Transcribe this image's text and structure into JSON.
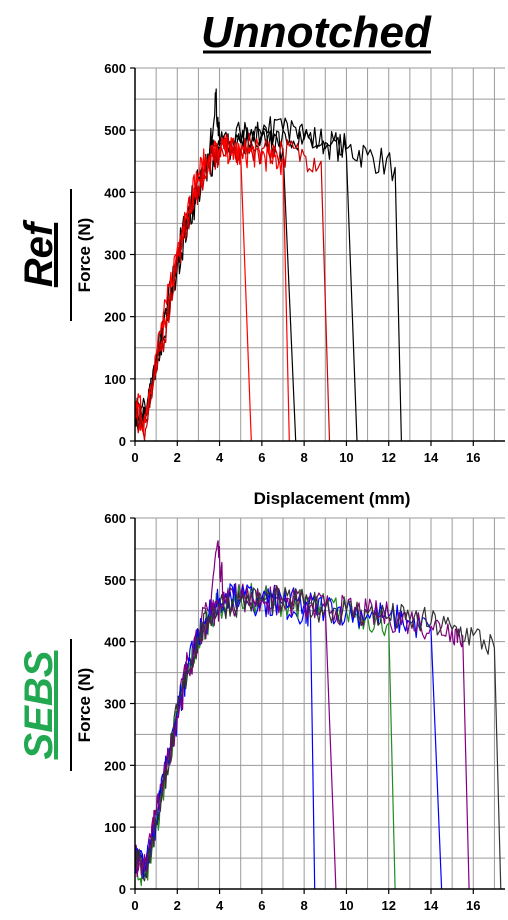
{
  "figure_title": "Unnotched",
  "chart_data": [
    {
      "type": "line",
      "panel_label": "Ref",
      "panel_label_color": "#000000",
      "ylabel": "Force (N)",
      "xlabel": "Displacement (mm)",
      "xlim": [
        0,
        17.5
      ],
      "ylim": [
        0,
        600
      ],
      "xticks": [
        "0",
        "2",
        "4",
        "6",
        "8",
        "10",
        "12",
        "14",
        "16"
      ],
      "yticks": [
        "0",
        "100",
        "200",
        "300",
        "400",
        "500",
        "600"
      ],
      "grid": true,
      "series_colors": [
        "#000000",
        "#ff0000",
        "#cc0000"
      ],
      "series": [
        {
          "color": "#000000",
          "x": [
            0,
            0.5,
            1,
            1.5,
            2,
            2.5,
            3,
            3.5,
            4,
            5,
            6,
            7,
            8,
            9,
            10,
            11,
            12.3,
            12.6
          ],
          "y": [
            50,
            40,
            130,
            210,
            300,
            370,
            420,
            460,
            475,
            480,
            490,
            500,
            490,
            480,
            470,
            460,
            440,
            0
          ]
        },
        {
          "color": "#000000",
          "x": [
            0,
            0.5,
            1,
            1.5,
            2,
            2.5,
            3,
            3.5,
            3.8,
            4,
            5,
            6,
            7,
            8,
            9,
            10,
            10.5
          ],
          "y": [
            40,
            30,
            120,
            200,
            290,
            360,
            410,
            450,
            560,
            480,
            490,
            495,
            500,
            485,
            470,
            460,
            0
          ]
        },
        {
          "color": "#000000",
          "x": [
            0,
            0.5,
            1,
            1.5,
            2,
            2.5,
            3,
            3.5,
            4,
            5,
            6,
            7,
            7.6
          ],
          "y": [
            30,
            50,
            110,
            190,
            280,
            350,
            400,
            440,
            470,
            480,
            490,
            470,
            0
          ]
        },
        {
          "color": "#ff0000",
          "x": [
            0,
            0.5,
            1,
            1.5,
            2,
            2.5,
            3,
            3.5,
            4,
            4.5,
            5,
            5.5
          ],
          "y": [
            60,
            40,
            140,
            220,
            310,
            380,
            430,
            460,
            470,
            465,
            460,
            0
          ]
        },
        {
          "color": "#ff0000",
          "x": [
            0,
            0.5,
            1,
            1.5,
            2,
            2.5,
            3,
            3.5,
            4,
            4.5,
            5,
            5.5,
            6,
            6.5,
            7,
            7.3
          ],
          "y": [
            50,
            30,
            120,
            200,
            300,
            370,
            420,
            450,
            465,
            470,
            460,
            465,
            460,
            455,
            450,
            0
          ]
        },
        {
          "color": "#cc0000",
          "x": [
            0,
            0.5,
            1,
            1.5,
            2,
            2.5,
            3,
            3.5,
            4,
            5,
            6,
            7,
            8,
            8.8,
            9.2
          ],
          "y": [
            40,
            20,
            110,
            190,
            290,
            360,
            410,
            445,
            460,
            470,
            470,
            465,
            460,
            450,
            0
          ]
        }
      ]
    },
    {
      "type": "line",
      "panel_label": "SEBS",
      "panel_label_color": "#22a850",
      "ylabel": "Force (N)",
      "xlabel": "",
      "xlim": [
        0,
        17.5
      ],
      "ylim": [
        0,
        600
      ],
      "xticks": [
        "0",
        "2",
        "4",
        "6",
        "8",
        "10",
        "12",
        "14",
        "16"
      ],
      "yticks": [
        "0",
        "100",
        "200",
        "300",
        "400",
        "500",
        "600"
      ],
      "grid": true,
      "series_colors": [
        "#0000ff",
        "#800080",
        "#228b22",
        "#333333"
      ],
      "series": [
        {
          "color": "#0000ff",
          "x": [
            0,
            0.5,
            1,
            1.5,
            2,
            2.5,
            3,
            3.5,
            4,
            5,
            6,
            7,
            8,
            8.3,
            8.5
          ],
          "y": [
            60,
            30,
            110,
            200,
            280,
            360,
            410,
            440,
            470,
            470,
            465,
            460,
            450,
            440,
            0
          ]
        },
        {
          "color": "#800080",
          "x": [
            0,
            0.5,
            1,
            1.5,
            2,
            2.5,
            3,
            3.5,
            3.9,
            4.2,
            5,
            6,
            7,
            8,
            9,
            9.5
          ],
          "y": [
            50,
            40,
            120,
            210,
            290,
            370,
            420,
            450,
            560,
            480,
            475,
            470,
            465,
            460,
            455,
            0
          ]
        },
        {
          "color": "#228b22",
          "x": [
            0,
            0.5,
            1,
            1.5,
            2,
            2.5,
            3,
            3.5,
            4,
            5,
            6,
            7,
            8,
            9,
            10,
            11,
            12,
            12.3
          ],
          "y": [
            40,
            20,
            100,
            190,
            280,
            350,
            400,
            440,
            460,
            470,
            470,
            465,
            460,
            455,
            450,
            440,
            430,
            0
          ]
        },
        {
          "color": "#0000ff",
          "x": [
            0,
            0.5,
            1,
            1.5,
            2,
            2.5,
            3,
            3.5,
            4,
            5,
            6,
            7,
            8,
            9,
            10,
            11,
            12,
            13,
            14,
            14.5
          ],
          "y": [
            50,
            30,
            110,
            200,
            290,
            360,
            410,
            445,
            465,
            470,
            470,
            465,
            460,
            455,
            450,
            445,
            440,
            430,
            420,
            0
          ]
        },
        {
          "color": "#800080",
          "x": [
            0,
            0.5,
            1,
            1.5,
            2,
            2.5,
            3,
            3.5,
            4,
            5,
            6,
            7,
            8,
            9,
            10,
            11,
            12,
            13,
            14,
            15,
            15.5,
            15.8
          ],
          "y": [
            40,
            30,
            120,
            200,
            280,
            350,
            400,
            440,
            460,
            468,
            470,
            465,
            460,
            455,
            450,
            445,
            440,
            435,
            425,
            420,
            410,
            0
          ]
        },
        {
          "color": "#333333",
          "x": [
            0,
            0.5,
            1,
            1.5,
            2,
            2.5,
            3,
            3.5,
            4,
            5,
            6,
            7,
            8,
            9,
            10,
            11,
            12,
            13,
            14,
            15,
            16,
            17,
            17.3
          ],
          "y": [
            55,
            25,
            105,
            195,
            285,
            355,
            405,
            440,
            460,
            465,
            468,
            465,
            460,
            455,
            450,
            445,
            440,
            435,
            430,
            420,
            410,
            390,
            0
          ]
        }
      ]
    }
  ]
}
